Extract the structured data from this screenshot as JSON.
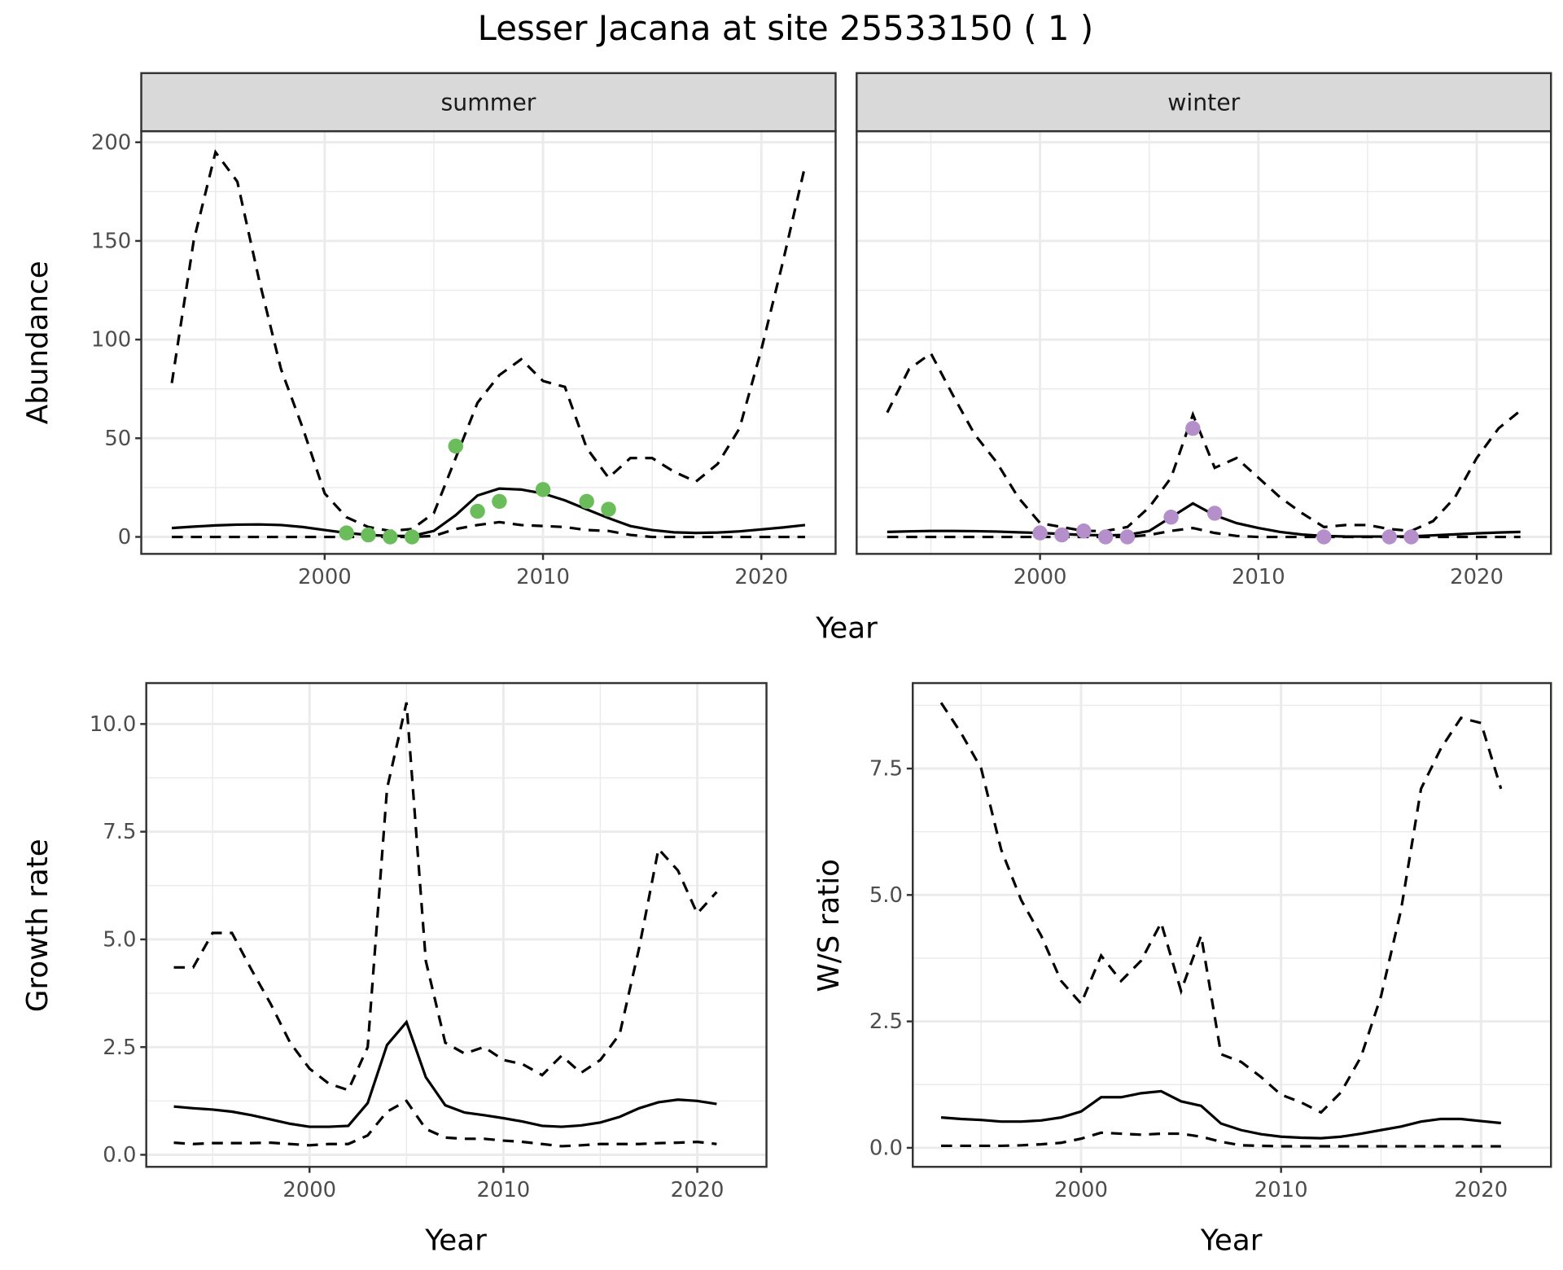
{
  "title": "Lesser Jacana at site 25533150 ( 1 )",
  "colors": {
    "summer_points": "#6abd5a",
    "winter_points": "#b48fc9",
    "lines": "#000000",
    "strip_bg": "#d9d9d9",
    "grid": "#ebebeb"
  },
  "chart_data": [
    {
      "type": "line",
      "panel": "summer",
      "strip_label": "summer",
      "ylabel": "Abundance",
      "xlabel": "Year",
      "xlim": [
        1991.6,
        2023.4
      ],
      "ylim": [
        -8.6,
        205.6
      ],
      "xticks": [
        2000,
        2010,
        2020
      ],
      "yticks": [
        0,
        50,
        100,
        150,
        200
      ],
      "xtick_labels": [
        "2000",
        "2010",
        "2020"
      ],
      "ytick_labels": [
        "0",
        "50",
        "100",
        "150",
        "200"
      ],
      "grid": true,
      "x": [
        1993,
        1994,
        1995,
        1996,
        1997,
        1998,
        1999,
        2000,
        2001,
        2002,
        2003,
        2004,
        2005,
        2006,
        2007,
        2008,
        2009,
        2010,
        2011,
        2012,
        2013,
        2014,
        2015,
        2016,
        2017,
        2018,
        2019,
        2020,
        2021,
        2022
      ],
      "series": [
        {
          "style": "dashed",
          "values": [
            78,
            150,
            195,
            180,
            130,
            85,
            55,
            22,
            10,
            5,
            3,
            4,
            12,
            40,
            68,
            82,
            90,
            79,
            76,
            45,
            30,
            40,
            40,
            33,
            28,
            37,
            55,
            95,
            140,
            188
          ]
        },
        {
          "style": "solid",
          "values": [
            4.5,
            5.2,
            5.8,
            6.2,
            6.3,
            6.0,
            5.0,
            3.5,
            2.0,
            1.0,
            0.5,
            0.5,
            3.0,
            11,
            21,
            24.5,
            24,
            22,
            18.5,
            14,
            9.5,
            5.5,
            3.5,
            2.3,
            2.0,
            2.2,
            2.8,
            3.8,
            4.8,
            6.0
          ]
        },
        {
          "style": "dashed",
          "values": [
            0,
            0,
            0,
            0,
            0,
            0,
            0,
            0,
            0,
            0,
            0,
            0,
            0.5,
            4,
            6,
            7.5,
            6,
            5.5,
            5,
            3.5,
            3,
            1,
            0,
            0,
            0,
            0,
            0,
            0,
            0,
            0
          ]
        }
      ],
      "points": {
        "x": [
          2001,
          2002,
          2003,
          2004,
          2006,
          2007,
          2008,
          2010,
          2012,
          2013
        ],
        "y": [
          2,
          1,
          0,
          0,
          46,
          13,
          18,
          24,
          18,
          14
        ]
      }
    },
    {
      "type": "line",
      "panel": "winter",
      "strip_label": "winter",
      "xlim": [
        1991.6,
        2023.4
      ],
      "ylim": [
        -8.6,
        205.6
      ],
      "xticks": [
        2000,
        2010,
        2020
      ],
      "yticks": [
        0,
        50,
        100,
        150,
        200
      ],
      "xtick_labels": [
        "2000",
        "2010",
        "2020"
      ],
      "grid": true,
      "x": [
        1993,
        1994,
        1995,
        1996,
        1997,
        1998,
        1999,
        2000,
        2001,
        2002,
        2003,
        2004,
        2005,
        2006,
        2007,
        2008,
        2009,
        2010,
        2011,
        2012,
        2013,
        2014,
        2015,
        2016,
        2017,
        2018,
        2019,
        2020,
        2021,
        2022
      ],
      "series": [
        {
          "style": "dashed",
          "values": [
            63,
            85,
            93,
            72,
            52,
            38,
            20,
            7,
            5,
            3,
            3,
            5,
            15,
            30,
            62,
            35,
            40,
            30,
            20,
            12,
            5,
            6,
            6,
            4,
            3,
            8,
            20,
            40,
            55,
            64
          ]
        },
        {
          "style": "solid",
          "values": [
            2.5,
            2.8,
            3,
            3,
            2.9,
            2.7,
            2.3,
            2,
            1.5,
            1,
            0.8,
            1,
            3,
            10,
            17,
            11,
            7,
            4.5,
            2.5,
            1.2,
            0.5,
            0.2,
            0.2,
            0.2,
            0.3,
            0.8,
            1.3,
            1.8,
            2.2,
            2.5
          ]
        },
        {
          "style": "dashed",
          "values": [
            0,
            0,
            0,
            0,
            0,
            0,
            0,
            0,
            0,
            0,
            0,
            0,
            1,
            3,
            4.5,
            2,
            0.5,
            0,
            0,
            0,
            0,
            0,
            0,
            0,
            0,
            0,
            0,
            0,
            0,
            0
          ]
        }
      ],
      "points": {
        "x": [
          2000,
          2001,
          2002,
          2003,
          2004,
          2006,
          2007,
          2008,
          2013,
          2016,
          2017
        ],
        "y": [
          2,
          1,
          3,
          0,
          0,
          10,
          55,
          12,
          0,
          0,
          0
        ]
      }
    },
    {
      "type": "line",
      "panel": "growth",
      "ylabel": "Growth rate",
      "xlabel": "Year",
      "xlim": [
        1991.58,
        2023.57
      ],
      "ylim": [
        -0.28,
        10.95
      ],
      "xticks": [
        2000,
        2010,
        2020
      ],
      "yticks": [
        0,
        2.5,
        5,
        7.5,
        10
      ],
      "xtick_labels": [
        "2000",
        "2010",
        "2020"
      ],
      "ytick_labels": [
        "0.0",
        "2.5",
        "5.0",
        "7.5",
        "10.0"
      ],
      "grid": true,
      "x": [
        1993,
        1994,
        1995,
        1996,
        1997,
        1998,
        1999,
        2000,
        2001,
        2002,
        2003,
        2004,
        2005,
        2006,
        2007,
        2008,
        2009,
        2010,
        2011,
        2012,
        2013,
        2014,
        2015,
        2016,
        2017,
        2018,
        2019,
        2020,
        2021
      ],
      "series": [
        {
          "style": "dashed",
          "values": [
            4.35,
            4.35,
            5.15,
            5.15,
            4.3,
            3.5,
            2.6,
            2.0,
            1.65,
            1.5,
            2.5,
            8.5,
            10.5,
            4.5,
            2.6,
            2.35,
            2.5,
            2.2,
            2.1,
            1.85,
            2.3,
            1.9,
            2.2,
            2.8,
            4.8,
            7.1,
            6.6,
            5.6,
            6.1
          ]
        },
        {
          "style": "solid",
          "values": [
            1.12,
            1.08,
            1.05,
            1.0,
            0.92,
            0.82,
            0.72,
            0.65,
            0.65,
            0.67,
            1.2,
            2.55,
            3.08,
            1.8,
            1.15,
            0.98,
            0.92,
            0.85,
            0.77,
            0.67,
            0.65,
            0.68,
            0.75,
            0.88,
            1.08,
            1.22,
            1.28,
            1.25,
            1.18
          ]
        },
        {
          "style": "dashed",
          "values": [
            0.28,
            0.25,
            0.27,
            0.27,
            0.27,
            0.28,
            0.25,
            0.22,
            0.25,
            0.25,
            0.45,
            1.0,
            1.25,
            0.6,
            0.4,
            0.37,
            0.37,
            0.33,
            0.3,
            0.25,
            0.2,
            0.22,
            0.25,
            0.25,
            0.25,
            0.27,
            0.28,
            0.3,
            0.25
          ]
        }
      ]
    },
    {
      "type": "line",
      "panel": "ratio",
      "ylabel": "W/S ratio",
      "xlabel": "Year",
      "xlim": [
        1991.58,
        2023.5
      ],
      "ylim": [
        -0.376,
        9.19
      ],
      "xticks": [
        2000,
        2010,
        2020
      ],
      "yticks": [
        0,
        2.5,
        5,
        7.5
      ],
      "xtick_labels": [
        "2000",
        "2010",
        "2020"
      ],
      "ytick_labels": [
        "0.0",
        "2.5",
        "5.0",
        "7.5"
      ],
      "grid": true,
      "x": [
        1993,
        1994,
        1995,
        1996,
        1997,
        1998,
        1999,
        2000,
        2001,
        2002,
        2003,
        2004,
        2005,
        2006,
        2007,
        2008,
        2009,
        2010,
        2011,
        2012,
        2013,
        2014,
        2015,
        2016,
        2017,
        2018,
        2019,
        2020,
        2021
      ],
      "series": [
        {
          "style": "dashed",
          "values": [
            8.8,
            8.2,
            7.5,
            5.9,
            4.9,
            4.2,
            3.3,
            2.85,
            3.8,
            3.3,
            3.7,
            4.45,
            3.1,
            4.2,
            1.85,
            1.7,
            1.4,
            1.05,
            0.9,
            0.7,
            1.1,
            1.8,
            3.0,
            4.7,
            7.1,
            7.9,
            8.5,
            8.4,
            7.1
          ]
        },
        {
          "style": "solid",
          "values": [
            0.6,
            0.57,
            0.55,
            0.52,
            0.52,
            0.54,
            0.6,
            0.72,
            1.0,
            1.0,
            1.08,
            1.12,
            0.92,
            0.83,
            0.48,
            0.35,
            0.27,
            0.22,
            0.2,
            0.19,
            0.22,
            0.28,
            0.35,
            0.42,
            0.52,
            0.57,
            0.57,
            0.53,
            0.49
          ]
        },
        {
          "style": "dashed",
          "values": [
            0.04,
            0.04,
            0.04,
            0.04,
            0.05,
            0.07,
            0.1,
            0.18,
            0.3,
            0.28,
            0.26,
            0.28,
            0.28,
            0.22,
            0.12,
            0.05,
            0.04,
            0.03,
            0.03,
            0.03,
            0.03,
            0.03,
            0.03,
            0.03,
            0.03,
            0.03,
            0.03,
            0.03,
            0.03
          ]
        }
      ]
    }
  ]
}
